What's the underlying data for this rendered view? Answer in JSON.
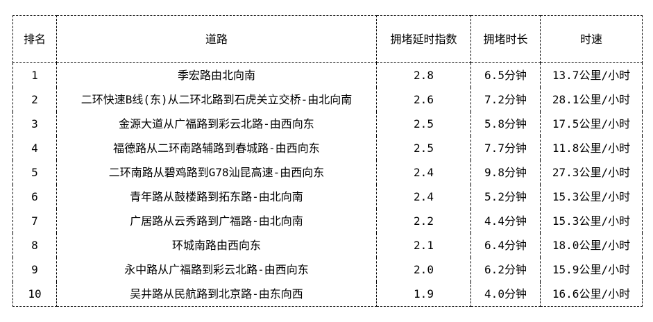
{
  "chart_data": {
    "type": "table",
    "columns": [
      "排名",
      "道路",
      "拥堵延时指数",
      "拥堵时长",
      "时速"
    ],
    "rows": [
      [
        "1",
        "季宏路由北向南",
        "2.8",
        "6.5分钟",
        "13.7公里/小时"
      ],
      [
        "2",
        "二环快速B线(东)从二环北路到石虎关立交桥-由北向南",
        "2.6",
        "7.2分钟",
        "28.1公里/小时"
      ],
      [
        "3",
        "金源大道从广福路到彩云北路-由西向东",
        "2.5",
        "5.8分钟",
        "17.5公里/小时"
      ],
      [
        "4",
        "福德路从二环南路辅路到春城路-由西向东",
        "2.5",
        "7.7分钟",
        "11.8公里/小时"
      ],
      [
        "5",
        "二环南路从碧鸡路到G78汕昆高速-由西向东",
        "2.4",
        "9.8分钟",
        "27.3公里/小时"
      ],
      [
        "6",
        "青年路从鼓楼路到拓东路-由北向南",
        "2.4",
        "5.2分钟",
        "15.3公里/小时"
      ],
      [
        "7",
        "广居路从云秀路到广福路-由北向南",
        "2.2",
        "4.4分钟",
        "15.3公里/小时"
      ],
      [
        "8",
        "环城南路由西向东",
        "2.1",
        "6.4分钟",
        "18.0公里/小时"
      ],
      [
        "9",
        "永中路从广福路到彩云北路-由西向东",
        "2.0",
        "6.2分钟",
        "15.9公里/小时"
      ],
      [
        "10",
        "吴井路从民航路到北京路-由东向西",
        "1.9",
        "4.0分钟",
        "16.6公里/小时"
      ]
    ]
  },
  "colors": {
    "text": "#000000",
    "border": "#000000",
    "background": "#ffffff"
  }
}
